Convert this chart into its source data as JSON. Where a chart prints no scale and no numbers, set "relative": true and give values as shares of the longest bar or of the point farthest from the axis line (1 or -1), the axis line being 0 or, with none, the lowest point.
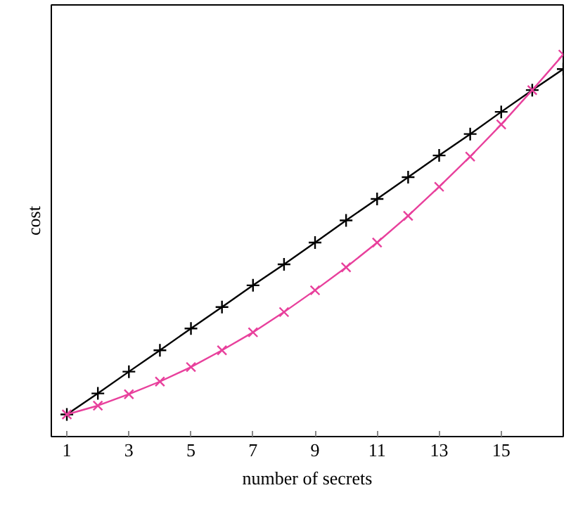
{
  "chart_data": {
    "type": "line",
    "xlabel": "number of secrets",
    "ylabel": "cost",
    "relative": true,
    "x": [
      1,
      2,
      3,
      4,
      5,
      6,
      7,
      8,
      9,
      10,
      11,
      12,
      13,
      14,
      15,
      16,
      17
    ],
    "xlim": [
      0.5,
      17
    ],
    "xticks": [
      1,
      3,
      5,
      7,
      9,
      11,
      13,
      15
    ],
    "tick_labels": "x",
    "grid": false,
    "line_style": "solid",
    "series": [
      {
        "color": "#000000",
        "marker": "cross",
        "values": [
          0.058,
          0.113,
          0.17,
          0.226,
          0.283,
          0.339,
          0.396,
          0.451,
          0.508,
          0.566,
          0.622,
          0.679,
          0.736,
          0.792,
          0.85,
          0.907,
          0.962
        ]
      },
      {
        "color": "#e8409c",
        "marker": "x",
        "values": [
          0.058,
          0.081,
          0.111,
          0.144,
          0.182,
          0.226,
          0.273,
          0.326,
          0.383,
          0.443,
          0.508,
          0.578,
          0.654,
          0.733,
          0.817,
          0.907,
          1
        ]
      }
    ]
  }
}
